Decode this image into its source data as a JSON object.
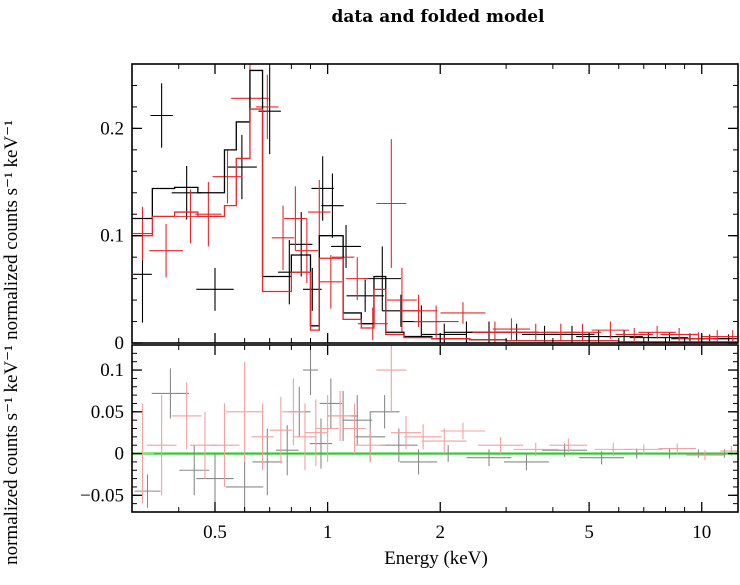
{
  "chart_data": {
    "type": "scatter",
    "title": "data and folded model",
    "xlabel": "Energy (keV)",
    "x_scale": "log",
    "xlim": [
      0.3,
      12.5
    ],
    "x_ticks": [
      0.5,
      1,
      2,
      5,
      10
    ],
    "x_tick_labels": [
      "0.5",
      "1",
      "2",
      "5",
      "10"
    ],
    "colors": {
      "black": "#000000",
      "red": "#e8262b",
      "green": "#22cc22",
      "faded_black": "#8a8a8a",
      "faded_red": "#f2a0a0"
    },
    "panels": [
      {
        "name": "top",
        "ylabel": "normalized counts s⁻¹ keV⁻¹",
        "ylim": [
          0,
          0.26
        ],
        "y_ticks": [
          0,
          0.1,
          0.2
        ],
        "y_tick_labels": [
          "0",
          "0.1",
          "0.2"
        ],
        "series": [
          {
            "color": "#000000",
            "points": [
              [
                0.32,
                0.064,
                0.025,
                0.045
              ],
              [
                0.36,
                0.212,
                0.03,
                0.03
              ],
              [
                0.42,
                0.14,
                0.04,
                0.025
              ],
              [
                0.5,
                0.05,
                0.05,
                0.02
              ],
              [
                0.59,
                0.164,
                0.04,
                0.03
              ],
              [
                0.7,
                0.216,
                0.03,
                0.04
              ],
              [
                0.79,
                0.066,
                0.03,
                0.03
              ],
              [
                0.85,
                0.092,
                0.03,
                0.03
              ],
              [
                0.91,
                0.05,
                0.025,
                0.02
              ],
              [
                0.97,
                0.144,
                0.03,
                0.03
              ],
              [
                1.03,
                0.128,
                0.03,
                0.03
              ],
              [
                1.12,
                0.09,
                0.04,
                0.02
              ],
              [
                1.26,
                0.044,
                0.05,
                0.015
              ],
              [
                1.4,
                0.06,
                0.05,
                0.03
              ],
              [
                1.57,
                0.03,
                0.05,
                0.015
              ],
              [
                1.78,
                0.02,
                0.05,
                0.015
              ],
              [
                2.05,
                0.008,
                0.06,
                0.01
              ],
              [
                2.35,
                0.01,
                0.06,
                0.01
              ],
              [
                2.7,
                0.01,
                0.06,
                0.01
              ],
              [
                3.2,
                0.01,
                0.06,
                0.008
              ],
              [
                3.8,
                0.008,
                0.06,
                0.008
              ],
              [
                4.5,
                0.008,
                0.06,
                0.008
              ],
              [
                5.3,
                0.006,
                0.06,
                0.006
              ],
              [
                6.2,
                0.006,
                0.05,
                0.006
              ],
              [
                7.2,
                0.005,
                0.05,
                0.005
              ],
              [
                8.2,
                0.005,
                0.05,
                0.005
              ],
              [
                9.3,
                0.004,
                0.05,
                0.005
              ],
              [
                10.5,
                0.004,
                0.05,
                0.004
              ],
              [
                11.8,
                0.004,
                0.04,
                0.004
              ]
            ]
          },
          {
            "color": "#e8262b",
            "points": [
              [
                0.32,
                0.102,
                0.025,
                0.025
              ],
              [
                0.37,
                0.086,
                0.045,
                0.025
              ],
              [
                0.43,
                0.118,
                0.04,
                0.025
              ],
              [
                0.48,
                0.12,
                0.035,
                0.03
              ],
              [
                0.54,
                0.155,
                0.04,
                0.025
              ],
              [
                0.62,
                0.228,
                0.05,
                0.04
              ],
              [
                0.69,
                0.22,
                0.03,
                0.03
              ],
              [
                0.76,
                0.098,
                0.03,
                0.03
              ],
              [
                0.82,
                0.116,
                0.03,
                0.03
              ],
              [
                0.88,
                0.086,
                0.03,
                0.03
              ],
              [
                0.95,
                0.122,
                0.03,
                0.03
              ],
              [
                1.02,
                0.057,
                0.03,
                0.025
              ],
              [
                1.1,
                0.08,
                0.03,
                0.02
              ],
              [
                1.2,
                0.06,
                0.03,
                0.02
              ],
              [
                1.32,
                0.018,
                0.04,
                0.015
              ],
              [
                1.48,
                0.13,
                0.04,
                0.06
              ],
              [
                1.58,
                0.04,
                0.04,
                0.03
              ],
              [
                1.75,
                0.03,
                0.05,
                0.015
              ],
              [
                1.95,
                0.02,
                0.06,
                0.015
              ],
              [
                2.3,
                0.028,
                0.06,
                0.01
              ],
              [
                2.8,
                0.01,
                0.06,
                0.01
              ],
              [
                3.1,
                0.013,
                0.05,
                0.01
              ],
              [
                3.6,
                0.01,
                0.06,
                0.008
              ],
              [
                4.2,
                0.01,
                0.05,
                0.008
              ],
              [
                4.8,
                0.01,
                0.05,
                0.008
              ],
              [
                5.7,
                0.012,
                0.05,
                0.008
              ],
              [
                6.6,
                0.008,
                0.05,
                0.006
              ],
              [
                7.6,
                0.01,
                0.05,
                0.006
              ],
              [
                8.7,
                0.008,
                0.05,
                0.006
              ],
              [
                9.8,
                0.004,
                0.05,
                0.006
              ],
              [
                11,
                0.006,
                0.04,
                0.006
              ],
              [
                12.1,
                0.006,
                0.03,
                0.006
              ]
            ]
          }
        ],
        "model_steps": [
          {
            "color": "#000000",
            "edges": [
              0.3,
              0.34,
              0.39,
              0.45,
              0.53,
              0.57,
              0.62,
              0.67,
              0.74,
              0.8,
              0.86,
              0.9,
              0.95,
              1.0,
              1.1,
              1.23,
              1.33,
              1.43,
              1.6,
              1.9,
              2.4,
              3.0,
              3.8,
              4.8,
              6.0,
              7.6,
              9.6,
              12.5
            ],
            "values": [
              0.116,
              0.144,
              0.145,
              0.14,
              0.18,
              0.206,
              0.254,
              0.062,
              0.062,
              0.082,
              0.082,
              0.016,
              0.1,
              0.1,
              0.028,
              0.018,
              0.062,
              0.01,
              0.006,
              0.004,
              0.003,
              0.002,
              0.002,
              0.002,
              0.001,
              0.001,
              0.001
            ]
          },
          {
            "color": "#e8262b",
            "edges": [
              0.3,
              0.34,
              0.39,
              0.45,
              0.53,
              0.57,
              0.62,
              0.67,
              0.74,
              0.8,
              0.86,
              0.9,
              0.95,
              1.0,
              1.1,
              1.23,
              1.33,
              1.43,
              1.6,
              1.9,
              2.4,
              3.0,
              3.8,
              4.8,
              6.0,
              7.6,
              9.6,
              12.5
            ],
            "values": [
              0.1,
              0.118,
              0.122,
              0.118,
              0.128,
              0.172,
              0.218,
              0.048,
              0.048,
              0.066,
              0.066,
              0.012,
              0.079,
              0.079,
              0.022,
              0.014,
              0.05,
              0.008,
              0.005,
              0.004,
              0.003,
              0.002,
              0.002,
              0.002,
              0.001,
              0.001,
              0.001
            ]
          }
        ]
      },
      {
        "name": "bottom",
        "ylabel": "normalized counts s⁻¹ keV⁻¹",
        "ylim": [
          -0.07,
          0.13
        ],
        "y_ticks": [
          -0.05,
          0,
          0.05,
          0.1
        ],
        "y_tick_labels": [
          "−0.05",
          "0",
          "0.05",
          "0.1"
        ],
        "baseline": 0,
        "series": [
          {
            "color": "#8a8a8a",
            "points": [
              [
                0.33,
                -0.045,
                0.035,
                0.02
              ],
              [
                0.38,
                0.072,
                0.05,
                0.03
              ],
              [
                0.44,
                -0.02,
                0.04,
                0.03
              ],
              [
                0.5,
                -0.03,
                0.05,
                0.03
              ],
              [
                0.6,
                -0.04,
                0.05,
                0.03
              ],
              [
                0.69,
                -0.01,
                0.04,
                0.04
              ],
              [
                0.78,
                0.004,
                0.03,
                0.03
              ],
              [
                0.84,
                0.05,
                0.03,
                0.03
              ],
              [
                0.9,
                0.1,
                0.02,
                0.03
              ],
              [
                0.96,
                0.012,
                0.03,
                0.03
              ],
              [
                1.02,
                0.06,
                0.03,
                0.03
              ],
              [
                1.1,
                0.045,
                0.04,
                0.03
              ],
              [
                1.2,
                0.04,
                0.04,
                0.03
              ],
              [
                1.3,
                0.02,
                0.04,
                0.03
              ],
              [
                1.42,
                0.05,
                0.04,
                0.02
              ],
              [
                1.55,
                0.01,
                0.05,
                0.02
              ],
              [
                1.75,
                -0.01,
                0.05,
                0.015
              ],
              [
                2.1,
                0.0,
                0.06,
                0.01
              ],
              [
                2.7,
                -0.005,
                0.06,
                0.01
              ],
              [
                3.4,
                -0.01,
                0.06,
                0.01
              ],
              [
                4.3,
                0.004,
                0.06,
                0.008
              ],
              [
                5.4,
                -0.005,
                0.06,
                0.008
              ],
              [
                6.7,
                0.0,
                0.05,
                0.006
              ],
              [
                8.2,
                0.0,
                0.05,
                0.006
              ],
              [
                9.8,
                0.0,
                0.05,
                0.005
              ],
              [
                11.5,
                0.0,
                0.04,
                0.005
              ]
            ]
          },
          {
            "color": "#f2a0a0",
            "points": [
              [
                0.32,
                0.0,
                0.03,
                0.06
              ],
              [
                0.36,
                0.01,
                0.04,
                0.06
              ],
              [
                0.42,
                0.045,
                0.04,
                0.04
              ],
              [
                0.47,
                0.01,
                0.04,
                0.04
              ],
              [
                0.53,
                0.01,
                0.04,
                0.05
              ],
              [
                0.6,
                0.05,
                0.05,
                0.06
              ],
              [
                0.67,
                0.02,
                0.03,
                0.04
              ],
              [
                0.75,
                0.028,
                0.03,
                0.04
              ],
              [
                0.81,
                0.05,
                0.03,
                0.04
              ],
              [
                0.87,
                0.02,
                0.03,
                0.04
              ],
              [
                0.93,
                0.025,
                0.03,
                0.04
              ],
              [
                1.0,
                0.03,
                0.03,
                0.04
              ],
              [
                1.08,
                0.045,
                0.03,
                0.03
              ],
              [
                1.18,
                0.03,
                0.03,
                0.03
              ],
              [
                1.3,
                0.01,
                0.04,
                0.02
              ],
              [
                1.48,
                0.1,
                0.04,
                0.05
              ],
              [
                1.62,
                0.025,
                0.04,
                0.02
              ],
              [
                1.8,
                0.02,
                0.05,
                0.015
              ],
              [
                2.05,
                0.015,
                0.06,
                0.015
              ],
              [
                2.3,
                0.027,
                0.06,
                0.01
              ],
              [
                2.9,
                0.01,
                0.06,
                0.01
              ],
              [
                3.6,
                0.005,
                0.06,
                0.008
              ],
              [
                4.4,
                0.01,
                0.05,
                0.008
              ],
              [
                5.8,
                0.005,
                0.05,
                0.008
              ],
              [
                7.0,
                0.005,
                0.05,
                0.006
              ],
              [
                8.6,
                0.006,
                0.05,
                0.006
              ],
              [
                10.2,
                -0.002,
                0.05,
                0.006
              ],
              [
                12.0,
                0.003,
                0.03,
                0.006
              ]
            ]
          }
        ],
        "reference_line": {
          "value": 0,
          "color": "#22cc22"
        }
      }
    ]
  }
}
